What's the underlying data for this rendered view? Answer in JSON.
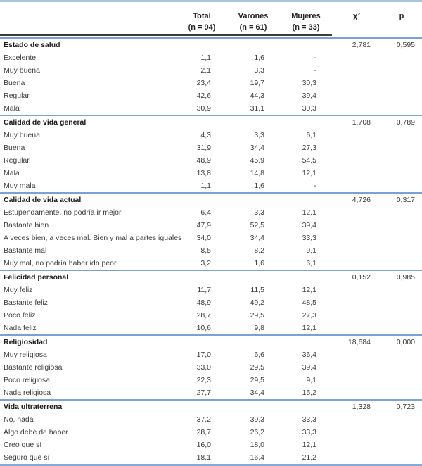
{
  "header": {
    "total": "Total",
    "total_n": "(n = 94)",
    "varones": "Varones",
    "varones_n": "(n = 61)",
    "mujeres": "Mujeres",
    "mujeres_n": "(n = 33)",
    "chi2": "χ²",
    "p": "p"
  },
  "colors": {
    "rule_blue": "#7ca2d4",
    "rule_light_blue": "#a9c2e2",
    "rule_bottom_blue": "#86a9d6",
    "header_underline": "#3d3d3d",
    "text": "#3c3c3c"
  },
  "sections": [
    {
      "title": "Estado de salud",
      "chi2": "2,781",
      "p": "0,595",
      "rows": [
        {
          "label": "Excelente",
          "total": "1,1",
          "varones": "1,6",
          "mujeres": "-"
        },
        {
          "label": "Muy buena",
          "total": "2,1",
          "varones": "3,3",
          "mujeres": "-"
        },
        {
          "label": "Buena",
          "total": "23,4",
          "varones": "19,7",
          "mujeres": "30,3"
        },
        {
          "label": "Regular",
          "total": "42,6",
          "varones": "44,3",
          "mujeres": "39,4"
        },
        {
          "label": "Mala",
          "total": "30,9",
          "varones": "31,1",
          "mujeres": "30,3"
        }
      ]
    },
    {
      "title": "Calidad de vida general",
      "chi2": "1,708",
      "p": "0,789",
      "rows": [
        {
          "label": "Muy buena",
          "total": "4,3",
          "varones": "3,3",
          "mujeres": "6,1"
        },
        {
          "label": "Buena",
          "total": "31,9",
          "varones": "34,4",
          "mujeres": "27,3"
        },
        {
          "label": "Regular",
          "total": "48,9",
          "varones": "45,9",
          "mujeres": "54,5"
        },
        {
          "label": "Mala",
          "total": "13,8",
          "varones": "14,8",
          "mujeres": "12,1"
        },
        {
          "label": "Muy mala",
          "total": "1,1",
          "varones": "1,6",
          "mujeres": "-"
        }
      ]
    },
    {
      "title": "Calidad de vida actual",
      "chi2": "4,726",
      "p": "0,317",
      "rows": [
        {
          "label": "Estupendamente, no podría ir mejor",
          "total": "6,4",
          "varones": "3,3",
          "mujeres": "12,1"
        },
        {
          "label": "Bastante bien",
          "total": "47,9",
          "varones": "52,5",
          "mujeres": "39,4"
        },
        {
          "label": "A veces bien, a veces mal. Bien y mal a partes iguales",
          "total": "34,0",
          "varones": "34,4",
          "mujeres": "33,3"
        },
        {
          "label": "Bastante mal",
          "total": "8,5",
          "varones": "8,2",
          "mujeres": "9,1"
        },
        {
          "label": "Muy mal, no podría haber ido peor",
          "total": "3,2",
          "varones": "1,6",
          "mujeres": "6,1"
        }
      ]
    },
    {
      "title": "Felicidad personal",
      "chi2": "0,152",
      "p": "0,985",
      "rows": [
        {
          "label": "Muy feliz",
          "total": "11,7",
          "varones": "11,5",
          "mujeres": "12,1"
        },
        {
          "label": "Bastante feliz",
          "total": "48,9",
          "varones": "49,2",
          "mujeres": "48,5"
        },
        {
          "label": "Poco feliz",
          "total": "28,7",
          "varones": "29,5",
          "mujeres": "27,3"
        },
        {
          "label": "Nada feliz",
          "total": "10,6",
          "varones": "9,8",
          "mujeres": "12,1"
        }
      ]
    },
    {
      "title": "Religiosidad",
      "chi2": "18,684",
      "p": "0,000",
      "rows": [
        {
          "label": "Muy religiosa",
          "total": "17,0",
          "varones": "6,6",
          "mujeres": "36,4"
        },
        {
          "label": "Bastante religiosa",
          "total": "33,0",
          "varones": "29,5",
          "mujeres": "39,4"
        },
        {
          "label": "Poco religiosa",
          "total": "22,3",
          "varones": "29,5",
          "mujeres": "9,1"
        },
        {
          "label": "Nada religiosa",
          "total": "27,7",
          "varones": "34,4",
          "mujeres": "15,2"
        }
      ]
    },
    {
      "title": "Vida ultraterrena",
      "chi2": "1,328",
      "p": "0,723",
      "rows": [
        {
          "label": "No, nada",
          "total": "37,2",
          "varones": "39,3",
          "mujeres": "33,3"
        },
        {
          "label": "Algo debe de haber",
          "total": "28,7",
          "varones": "26,2",
          "mujeres": "33,3"
        },
        {
          "label": "Creo que sí",
          "total": "16,0",
          "varones": "18,0",
          "mujeres": "12,1"
        },
        {
          "label": "Seguro que sí",
          "total": "18,1",
          "varones": "16,4",
          "mujeres": "21,2"
        }
      ]
    }
  ]
}
